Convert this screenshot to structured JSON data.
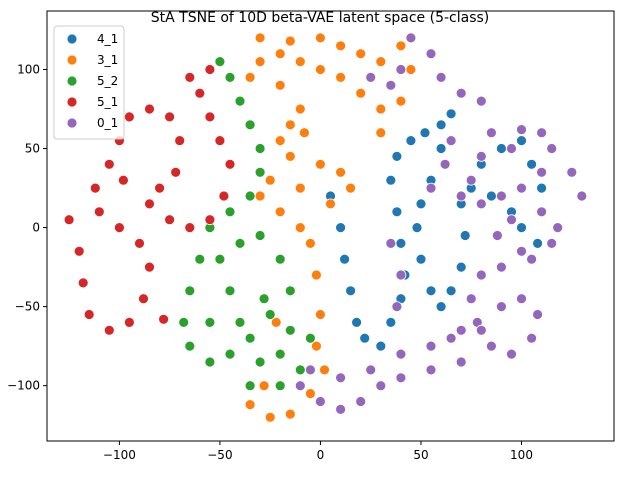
{
  "chart_data": {
    "type": "scatter",
    "title": "StA TSNE of 10D beta-VAE latent space (5-class)",
    "xlabel": "",
    "ylabel": "",
    "xlim": [
      -136,
      146
    ],
    "ylim": [
      -135,
      137
    ],
    "xticks": [
      -100,
      -50,
      0,
      50,
      100
    ],
    "yticks": [
      -100,
      -50,
      0,
      50,
      100
    ],
    "xtick_labels": [
      "−100",
      "−50",
      "0",
      "50",
      "100"
    ],
    "ytick_labels": [
      "−100",
      "−50",
      "0",
      "50",
      "100"
    ],
    "grid": false,
    "legend_position": "top-left",
    "series": [
      {
        "name": "4_1",
        "color": "#1f77b4",
        "points": [
          [
            5,
            20
          ],
          [
            10,
            0
          ],
          [
            12,
            -20
          ],
          [
            15,
            -40
          ],
          [
            18,
            -60
          ],
          [
            22,
            -70
          ],
          [
            30,
            -75
          ],
          [
            35,
            -60
          ],
          [
            40,
            -45
          ],
          [
            42,
            -30
          ],
          [
            40,
            -10
          ],
          [
            38,
            10
          ],
          [
            35,
            30
          ],
          [
            38,
            45
          ],
          [
            45,
            55
          ],
          [
            52,
            60
          ],
          [
            60,
            65
          ],
          [
            65,
            72
          ],
          [
            60,
            50
          ],
          [
            55,
            30
          ],
          [
            50,
            15
          ],
          [
            48,
            0
          ],
          [
            50,
            -20
          ],
          [
            55,
            -40
          ],
          [
            60,
            -50
          ],
          [
            65,
            -40
          ],
          [
            70,
            -25
          ],
          [
            72,
            -5
          ],
          [
            70,
            15
          ],
          [
            75,
            25
          ],
          [
            85,
            20
          ],
          [
            95,
            10
          ],
          [
            100,
            0
          ],
          [
            108,
            -10
          ],
          [
            110,
            25
          ],
          [
            105,
            40
          ],
          [
            100,
            55
          ],
          [
            90,
            50
          ],
          [
            80,
            40
          ]
        ]
      },
      {
        "name": "3_1",
        "color": "#ff7f0e",
        "points": [
          [
            -30,
            120
          ],
          [
            -15,
            118
          ],
          [
            0,
            120
          ],
          [
            10,
            115
          ],
          [
            20,
            110
          ],
          [
            30,
            105
          ],
          [
            40,
            115
          ],
          [
            45,
            100
          ],
          [
            40,
            80
          ],
          [
            30,
            75
          ],
          [
            20,
            85
          ],
          [
            10,
            95
          ],
          [
            0,
            100
          ],
          [
            -10,
            105
          ],
          [
            -20,
            110
          ],
          [
            -30,
            105
          ],
          [
            -35,
            95
          ],
          [
            -20,
            90
          ],
          [
            -10,
            75
          ],
          [
            -15,
            65
          ],
          [
            -20,
            55
          ],
          [
            -15,
            45
          ],
          [
            0,
            40
          ],
          [
            10,
            35
          ],
          [
            15,
            25
          ],
          [
            5,
            15
          ],
          [
            -10,
            25
          ],
          [
            -25,
            30
          ],
          [
            -30,
            20
          ],
          [
            -20,
            10
          ],
          [
            -10,
            0
          ],
          [
            -5,
            -10
          ],
          [
            -2,
            -30
          ],
          [
            0,
            -55
          ],
          [
            -2,
            -75
          ],
          [
            2,
            -90
          ],
          [
            -5,
            -105
          ],
          [
            -15,
            -118
          ],
          [
            -25,
            -120
          ],
          [
            -35,
            -112
          ],
          [
            -22,
            -60
          ],
          [
            -28,
            -100
          ],
          [
            -8,
            60
          ],
          [
            30,
            60
          ]
        ]
      },
      {
        "name": "5_2",
        "color": "#2ca02c",
        "points": [
          [
            -50,
            105
          ],
          [
            -45,
            95
          ],
          [
            -40,
            80
          ],
          [
            -35,
            65
          ],
          [
            -30,
            50
          ],
          [
            -30,
            35
          ],
          [
            -35,
            20
          ],
          [
            -45,
            10
          ],
          [
            -55,
            0
          ],
          [
            -60,
            -20
          ],
          [
            -65,
            -40
          ],
          [
            -68,
            -60
          ],
          [
            -65,
            -75
          ],
          [
            -55,
            -85
          ],
          [
            -45,
            -80
          ],
          [
            -40,
            -60
          ],
          [
            -45,
            -40
          ],
          [
            -50,
            -20
          ],
          [
            -40,
            -10
          ],
          [
            -30,
            -5
          ],
          [
            -20,
            -20
          ],
          [
            -15,
            -40
          ],
          [
            -25,
            -55
          ],
          [
            -35,
            -70
          ],
          [
            -30,
            -85
          ],
          [
            -20,
            -80
          ],
          [
            -15,
            -65
          ],
          [
            -5,
            -70
          ],
          [
            -10,
            -90
          ],
          [
            -20,
            -100
          ],
          [
            -35,
            -100
          ],
          [
            -28,
            -45
          ],
          [
            -55,
            -60
          ]
        ]
      },
      {
        "name": "5_1",
        "color": "#d62728",
        "points": [
          [
            -125,
            5
          ],
          [
            -120,
            -15
          ],
          [
            -118,
            -35
          ],
          [
            -115,
            -55
          ],
          [
            -105,
            -65
          ],
          [
            -95,
            -60
          ],
          [
            -88,
            -45
          ],
          [
            -85,
            -25
          ],
          [
            -90,
            -10
          ],
          [
            -100,
            0
          ],
          [
            -110,
            10
          ],
          [
            -112,
            25
          ],
          [
            -105,
            40
          ],
          [
            -100,
            55
          ],
          [
            -95,
            70
          ],
          [
            -85,
            75
          ],
          [
            -75,
            70
          ],
          [
            -70,
            55
          ],
          [
            -72,
            35
          ],
          [
            -80,
            25
          ],
          [
            -85,
            15
          ],
          [
            -75,
            5
          ],
          [
            -65,
            0
          ],
          [
            -55,
            5
          ],
          [
            -48,
            20
          ],
          [
            -45,
            40
          ],
          [
            -50,
            55
          ],
          [
            -55,
            70
          ],
          [
            -60,
            85
          ],
          [
            -55,
            100
          ],
          [
            -65,
            95
          ],
          [
            -78,
            -58
          ],
          [
            -98,
            30
          ]
        ]
      },
      {
        "name": "0_1",
        "color": "#9467bd",
        "points": [
          [
            45,
            120
          ],
          [
            55,
            110
          ],
          [
            60,
            95
          ],
          [
            40,
            100
          ],
          [
            35,
            90
          ],
          [
            25,
            95
          ],
          [
            70,
            85
          ],
          [
            80,
            80
          ],
          [
            85,
            60
          ],
          [
            80,
            45
          ],
          [
            75,
            30
          ],
          [
            70,
            20
          ],
          [
            80,
            15
          ],
          [
            90,
            20
          ],
          [
            100,
            25
          ],
          [
            110,
            35
          ],
          [
            115,
            50
          ],
          [
            125,
            35
          ],
          [
            130,
            20
          ],
          [
            110,
            10
          ],
          [
            95,
            5
          ],
          [
            88,
            -5
          ],
          [
            100,
            -15
          ],
          [
            115,
            -10
          ],
          [
            118,
            0
          ],
          [
            105,
            -20
          ],
          [
            90,
            -25
          ],
          [
            80,
            -30
          ],
          [
            75,
            -45
          ],
          [
            78,
            -60
          ],
          [
            85,
            -75
          ],
          [
            95,
            -80
          ],
          [
            105,
            -70
          ],
          [
            108,
            -55
          ],
          [
            100,
            -45
          ],
          [
            90,
            -50
          ],
          [
            80,
            -65
          ],
          [
            70,
            -85
          ],
          [
            55,
            -90
          ],
          [
            40,
            -95
          ],
          [
            30,
            -100
          ],
          [
            20,
            -110
          ],
          [
            10,
            -115
          ],
          [
            0,
            -110
          ],
          [
            -10,
            -100
          ],
          [
            -5,
            -90
          ],
          [
            10,
            -95
          ],
          [
            25,
            -90
          ],
          [
            40,
            -80
          ],
          [
            55,
            -75
          ],
          [
            65,
            -70
          ],
          [
            70,
            -65
          ],
          [
            35,
            -10
          ],
          [
            40,
            -30
          ],
          [
            38,
            -50
          ],
          [
            55,
            25
          ],
          [
            62,
            40
          ],
          [
            65,
            55
          ],
          [
            110,
            60
          ],
          [
            100,
            62
          ],
          [
            95,
            50
          ]
        ]
      }
    ]
  }
}
